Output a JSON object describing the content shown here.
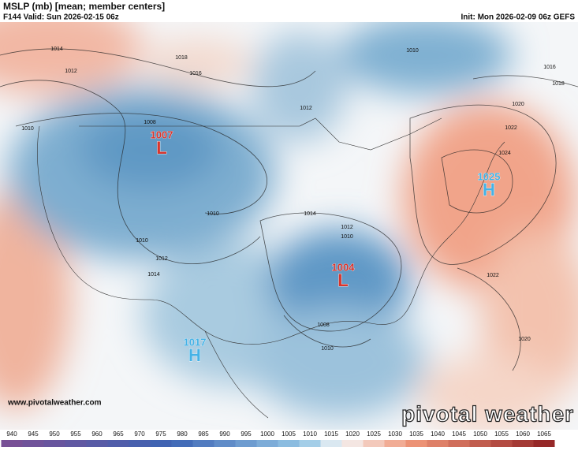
{
  "header": {
    "title": "MSLP (mb) [mean; member centers]",
    "valid": "F144 Valid: Sun 2026-02-15 06z",
    "init": "Init: Mon 2026-02-09 06z GEFS"
  },
  "centers": [
    {
      "value": 1007,
      "type": "L"
    },
    {
      "value": 1004,
      "type": "L"
    },
    {
      "value": 1025,
      "type": "H"
    },
    {
      "value": 1017,
      "type": "H"
    }
  ],
  "isobars": [
    1014,
    1018,
    1016,
    1012,
    1010,
    1008,
    1010,
    1010,
    1012,
    1014,
    1014,
    1012,
    1010,
    1008,
    1010,
    1012,
    1010,
    1016,
    1018,
    1020,
    1022,
    1024,
    1022,
    1020
  ],
  "colorbar": [
    940,
    945,
    950,
    955,
    960,
    965,
    970,
    975,
    980,
    985,
    990,
    995,
    1000,
    1005,
    1010,
    1015,
    1020,
    1025,
    1030,
    1035,
    1040,
    1045,
    1050,
    1055,
    1060,
    1065
  ],
  "footer": {
    "url": "www.pivotalweather.com",
    "logo": "pivotal weather"
  }
}
